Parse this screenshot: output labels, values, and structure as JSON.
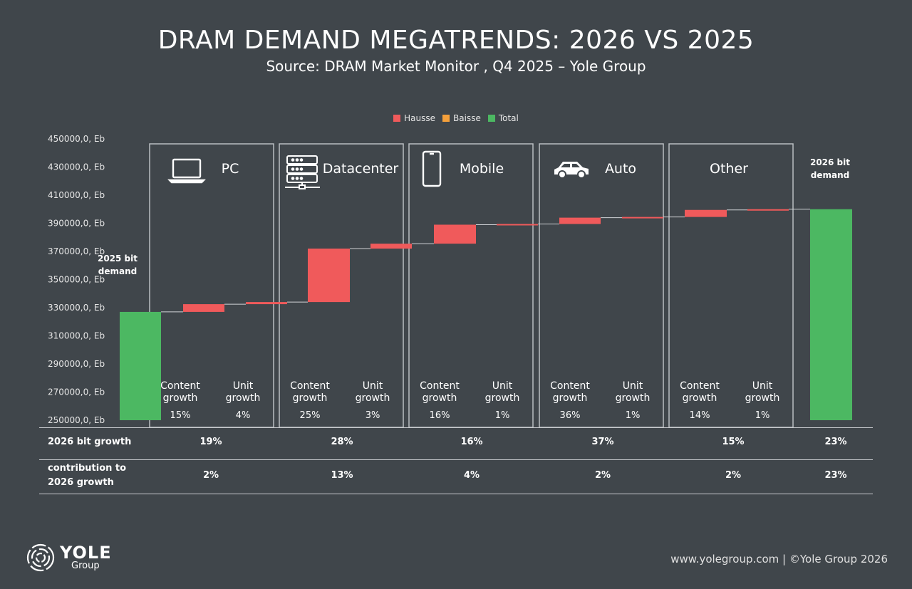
{
  "title": "DRAM DEMAND MEGATRENDS: 2026 VS 2025",
  "subtitle": "Source: DRAM Market Monitor , Q4 2025 – Yole Group",
  "legend": [
    {
      "label": "Hausse",
      "color": "#f05a5b"
    },
    {
      "label": "Baisse",
      "color": "#f5a03b"
    },
    {
      "label": "Total",
      "color": "#4cb862"
    }
  ],
  "labels": {
    "start": "2025 bit demand",
    "end": "2026 bit demand",
    "content_growth": "Content growth",
    "unit_growth": "Unit growth"
  },
  "segments": [
    {
      "name": "PC",
      "icon": "laptop-icon",
      "content": "15%",
      "unit": "4%"
    },
    {
      "name": "Datacenter",
      "icon": "server-icon",
      "content": "25%",
      "unit": "3%"
    },
    {
      "name": "Mobile",
      "icon": "smartphone-icon",
      "content": "16%",
      "unit": "1%"
    },
    {
      "name": "Auto",
      "icon": "car-icon",
      "content": "36%",
      "unit": "1%"
    },
    {
      "name": "Other",
      "icon": "",
      "content": "14%",
      "unit": "1%"
    }
  ],
  "table": {
    "row1_label": "2026 bit growth",
    "row1": [
      "19%",
      "28%",
      "16%",
      "37%",
      "15%",
      "23%"
    ],
    "row2_label_line1": "contribution to",
    "row2_label_line2": "2026 growth",
    "row2": [
      "2%",
      "13%",
      "4%",
      "2%",
      "2%",
      "23%"
    ]
  },
  "chart_data": {
    "type": "bar",
    "subtype": "waterfall",
    "y_ticks": [
      "450000,0, Eb",
      "430000,0, Eb",
      "410000,0, Eb",
      "390000,0, Eb",
      "370000,0, Eb",
      "350000,0, Eb",
      "330000,0, Eb",
      "310000,0, Eb",
      "290000,0, Eb",
      "270000,0, Eb",
      "250000,0, Eb"
    ],
    "ylim": [
      250000,
      450000
    ],
    "steps": [
      {
        "category": "2025 bit demand",
        "kind": "total",
        "start": 250000,
        "end": 327000
      },
      {
        "category": "PC content growth",
        "kind": "increase",
        "start": 327000,
        "end": 332500
      },
      {
        "category": "PC unit growth",
        "kind": "increase",
        "start": 332500,
        "end": 334000
      },
      {
        "category": "Datacenter content growth",
        "kind": "increase",
        "start": 334000,
        "end": 372000
      },
      {
        "category": "Datacenter unit growth",
        "kind": "increase",
        "start": 372000,
        "end": 375500
      },
      {
        "category": "Mobile content growth",
        "kind": "increase",
        "start": 375500,
        "end": 389000
      },
      {
        "category": "Mobile unit growth",
        "kind": "increase",
        "start": 389000,
        "end": 389500
      },
      {
        "category": "Auto content growth",
        "kind": "increase",
        "start": 389500,
        "end": 394000
      },
      {
        "category": "Auto unit growth",
        "kind": "increase",
        "start": 394000,
        "end": 394500
      },
      {
        "category": "Other content growth",
        "kind": "increase",
        "start": 394500,
        "end": 399500
      },
      {
        "category": "Other unit growth",
        "kind": "increase",
        "start": 399500,
        "end": 400000
      },
      {
        "category": "2026 bit demand",
        "kind": "total",
        "start": 250000,
        "end": 400000
      }
    ]
  },
  "brand": {
    "name": "YOLE",
    "sub": "Group"
  },
  "footer": "www.yolegroup.com | ©Yole Group 2026"
}
